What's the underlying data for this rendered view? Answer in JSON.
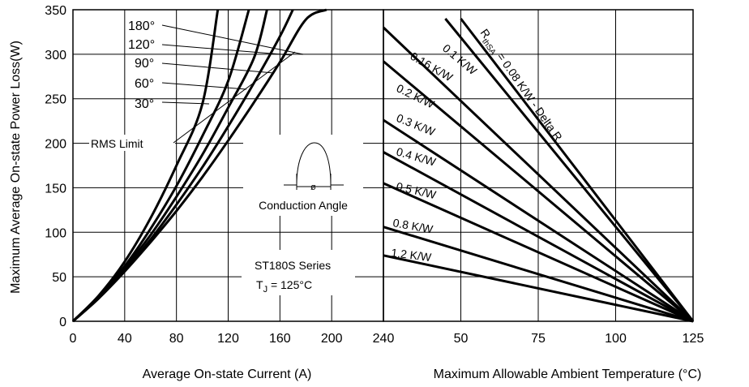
{
  "chart_data": [
    {
      "type": "line",
      "ylabel": "Maximum Average On-state Power Loss(W)",
      "xlabel": "Average On-state Current (A)",
      "xlim": [
        0,
        240
      ],
      "ylim": [
        0,
        350
      ],
      "xticks": [
        0,
        40,
        80,
        120,
        160,
        200,
        240
      ],
      "yticks": [
        0,
        50,
        100,
        150,
        200,
        250,
        300,
        350
      ],
      "grid": true,
      "series": [
        {
          "name": "180°",
          "x": [
            0,
            20,
            40,
            60,
            80,
            100,
            120,
            140,
            160,
            180,
            196
          ],
          "y": [
            0,
            26,
            56,
            89,
            124,
            162,
            203,
            246,
            291,
            339,
            350
          ]
        },
        {
          "name": "120°",
          "x": [
            0,
            20,
            40,
            60,
            80,
            100,
            120,
            140,
            160,
            170
          ],
          "y": [
            0,
            26,
            57,
            92,
            131,
            173,
            219,
            268,
            320,
            350
          ]
        },
        {
          "name": "90°",
          "x": [
            0,
            20,
            40,
            60,
            80,
            100,
            120,
            140,
            150
          ],
          "y": [
            0,
            27,
            60,
            97,
            140,
            187,
            240,
            296,
            350
          ]
        },
        {
          "name": "60°",
          "x": [
            0,
            20,
            40,
            60,
            80,
            100,
            120,
            136
          ],
          "y": [
            0,
            28,
            62,
            104,
            152,
            208,
            270,
            350
          ]
        },
        {
          "name": "30°",
          "x": [
            0,
            20,
            40,
            60,
            80,
            100,
            112
          ],
          "y": [
            0,
            29,
            67,
            116,
            175,
            244,
            350
          ]
        }
      ],
      "rms_limit": {
        "label": "RMS Limit",
        "x": 180,
        "y": 325
      },
      "inset_label": "Conduction Angle",
      "inset_symbol": "ø",
      "annotation": {
        "series_name": "ST180S Series",
        "tj_prefix": "T",
        "tj_sub": "J",
        "tj_value": " = 125°C"
      }
    },
    {
      "type": "line",
      "xlabel": "Maximum Allowable Ambient Temperature (°C)",
      "xlim": [
        25,
        125
      ],
      "ylim": [
        0,
        350
      ],
      "xticks": [
        50,
        75,
        100,
        125
      ],
      "yticks": [
        0,
        50,
        100,
        150,
        200,
        250,
        300,
        350
      ],
      "grid": true,
      "series": [
        {
          "name": "R thSA = 0.08 K/W - Delta R",
          "x": [
            50,
            125
          ],
          "y": [
            340,
            0
          ]
        },
        {
          "name": "0.1 K/W",
          "x": [
            45,
            125
          ],
          "y": [
            340,
            0
          ]
        },
        {
          "name": "0.16 K/W",
          "x": [
            25,
            125
          ],
          "y": [
            330,
            0
          ]
        },
        {
          "name": "0.2 K/W",
          "x": [
            25,
            125
          ],
          "y": [
            292,
            0
          ]
        },
        {
          "name": "0.3 K/W",
          "x": [
            25,
            125
          ],
          "y": [
            226,
            0
          ]
        },
        {
          "name": "0.4 K/W",
          "x": [
            25,
            125
          ],
          "y": [
            190,
            0
          ]
        },
        {
          "name": "0.5 K/W",
          "x": [
            25,
            125
          ],
          "y": [
            155,
            0
          ]
        },
        {
          "name": "0.8 K/W",
          "x": [
            25,
            125
          ],
          "y": [
            106,
            0
          ]
        },
        {
          "name": "1.2 K/W",
          "x": [
            25,
            125
          ],
          "y": [
            74,
            0
          ]
        }
      ]
    }
  ],
  "labels": {
    "rth_r": "R",
    "rth_sub": "thSA",
    "rth_rest": " = 0.08 K/W - Delta R"
  }
}
